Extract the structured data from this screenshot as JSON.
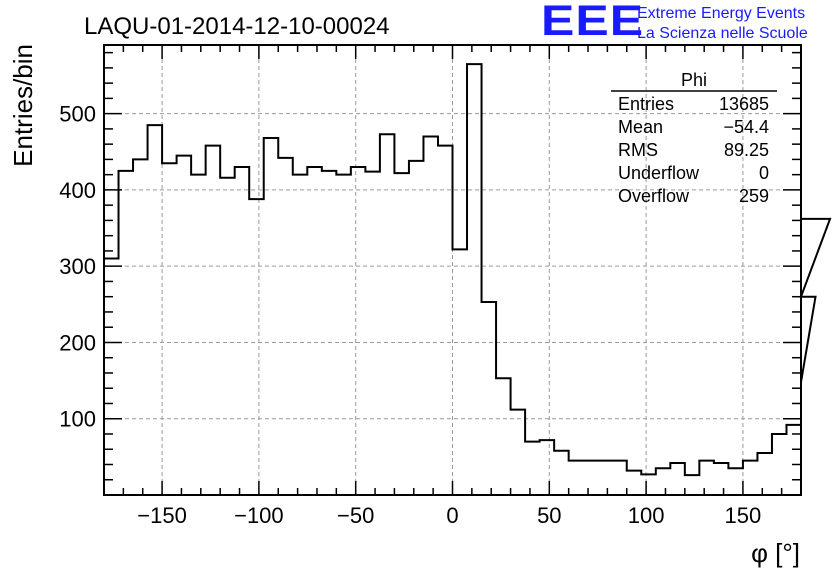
{
  "header": {
    "run_title": "LAQU-01-2014-12-10-00024",
    "logo_text": "EEE",
    "logo_line1": "Extreme Energy Events",
    "logo_line2": "La Scienza nelle Scuole"
  },
  "stats_box": {
    "name": "Phi",
    "rows": [
      {
        "label": "Entries",
        "value": "13685"
      },
      {
        "label": "Mean",
        "value": "−54.4"
      },
      {
        "label": "RMS",
        "value": "89.25"
      },
      {
        "label": "Underflow",
        "value": "0"
      },
      {
        "label": "Overflow",
        "value": "259"
      }
    ]
  },
  "chart_data": {
    "type": "histogram",
    "title": "LAQU-01-2014-12-10-00024",
    "xlabel": "φ [°]",
    "ylabel": "Entries/bin",
    "xlim": [
      -180,
      180
    ],
    "ylim": [
      0,
      590
    ],
    "xticks": [
      -150,
      -100,
      -50,
      0,
      50,
      100,
      150
    ],
    "yticks": [
      100,
      200,
      300,
      400,
      500
    ],
    "xtick_labels": [
      "−150",
      "−100",
      "−50",
      "0",
      "50",
      "100",
      "150"
    ],
    "ytick_labels": [
      "100",
      "200",
      "300",
      "400",
      "500"
    ],
    "grid": true,
    "bin_width": 7.5,
    "bin_edges_start": -180,
    "values": [
      310,
      425,
      440,
      485,
      435,
      445,
      420,
      458,
      416,
      430,
      388,
      468,
      442,
      420,
      430,
      425,
      420,
      430,
      424,
      473,
      422,
      438,
      470,
      458,
      322,
      565,
      253,
      153,
      112,
      70,
      72,
      58,
      45,
      45,
      45,
      45,
      32,
      27,
      35,
      42,
      26,
      45,
      42,
      35,
      45,
      55,
      80,
      92,
      148,
      260,
      362
    ],
    "line_color": "#000000"
  }
}
